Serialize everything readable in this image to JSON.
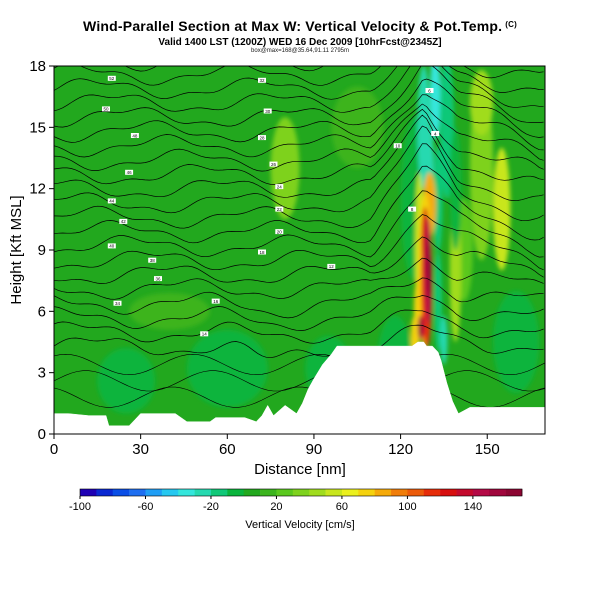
{
  "title": "Wind-Parallel Section at Max W: Vertical Velocity & Pot.Temp.",
  "copyright": "(C)",
  "subtitle": "Valid 1400 LST (1200Z) WED 16 Dec 2009 [10hrFcst@2345Z]",
  "subsubtitle": "box@max=168@35.64,91.11 2795m",
  "chart_data": {
    "type": "heatmap",
    "title": "Wind-Parallel Section at Max W: Vertical Velocity & Pot.Temp.",
    "xlabel": "Distance [nm]",
    "ylabel": "Height [Kft MSL]",
    "xlim": [
      0,
      170
    ],
    "ylim": [
      0,
      18
    ],
    "xticks": [
      0,
      30,
      60,
      90,
      120,
      150
    ],
    "yticks": [
      0,
      3,
      6,
      9,
      12,
      15,
      18
    ],
    "terrain": [
      [
        0,
        1.0
      ],
      [
        5,
        1.0
      ],
      [
        12,
        0.9
      ],
      [
        18,
        0.9
      ],
      [
        19,
        0.4
      ],
      [
        26,
        0.4
      ],
      [
        28,
        0.7
      ],
      [
        30,
        1.0
      ],
      [
        42,
        1.0
      ],
      [
        46,
        0.6
      ],
      [
        54,
        0.6
      ],
      [
        56,
        0.8
      ],
      [
        66,
        0.8
      ],
      [
        70,
        0.6
      ],
      [
        72,
        0.9
      ],
      [
        74,
        1.4
      ],
      [
        76,
        0.9
      ],
      [
        80,
        1.4
      ],
      [
        84,
        1.0
      ],
      [
        86,
        1.5
      ],
      [
        88,
        2.2
      ],
      [
        90,
        2.7
      ],
      [
        93,
        3.4
      ],
      [
        96,
        3.9
      ],
      [
        98,
        4.3
      ],
      [
        124,
        4.3
      ],
      [
        126,
        4.5
      ],
      [
        128,
        4.5
      ],
      [
        129,
        4.3
      ],
      [
        131,
        4.3
      ],
      [
        133,
        4.0
      ],
      [
        134,
        3.6
      ],
      [
        136,
        2.5
      ],
      [
        138,
        1.6
      ],
      [
        140,
        1.0
      ],
      [
        144,
        1.3
      ],
      [
        150,
        1.3
      ],
      [
        170,
        1.3
      ]
    ],
    "updraft_max": {
      "x": 131,
      "y": 8,
      "value": 168
    },
    "colorbar": {
      "label": "Vertical Velocity [cm/s]",
      "min": -100,
      "max": 170,
      "step": 10,
      "ticks": [
        -100,
        -60,
        -20,
        20,
        60,
        100,
        140
      ],
      "colors": [
        "#1e00b4",
        "#0a28d2",
        "#0a4ee6",
        "#1e6ef0",
        "#1f9ef5",
        "#26c8f0",
        "#34e6dc",
        "#25d9b0",
        "#10c878",
        "#0ab43c",
        "#22a81e",
        "#3cb41e",
        "#5ac81e",
        "#7ed21e",
        "#a0dc1e",
        "#c8e61e",
        "#ebf01e",
        "#f5d20e",
        "#f5aa0a",
        "#f07d0a",
        "#eb5a0a",
        "#e62d0a",
        "#d70f0f",
        "#c30a2d",
        "#b40a46",
        "#a0063c",
        "#8c0532"
      ]
    },
    "contour_labels": [
      "52",
      "50",
      "48",
      "46",
      "44",
      "42",
      "40",
      "38",
      "36",
      "34",
      "32",
      "30",
      "28",
      "26",
      "24",
      "22",
      "20",
      "18",
      "16",
      "14",
      "12",
      "10",
      "8",
      "6",
      "4",
      "2"
    ]
  }
}
